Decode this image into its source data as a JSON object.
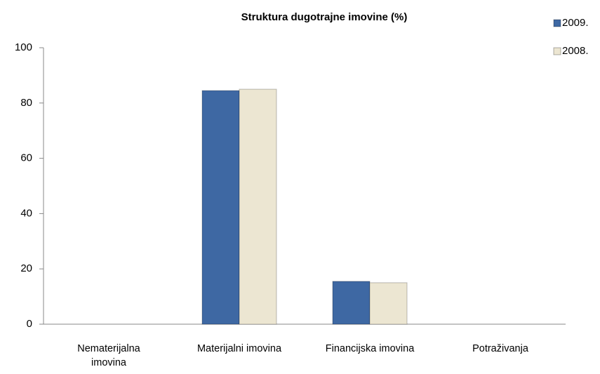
{
  "chart_data": {
    "type": "bar",
    "title": "Struktura dugotrajne imovine  (%)",
    "categories": [
      "Nematerijalna imovina",
      "Materijalni imovina",
      "Financijska imovina",
      "Potraživanja"
    ],
    "series": [
      {
        "name": "2009.",
        "color": "#3e68a3",
        "values": [
          0,
          84.5,
          15.5,
          0
        ]
      },
      {
        "name": "2008.",
        "color": "#ece6d2",
        "values": [
          0,
          85,
          15,
          0
        ]
      }
    ],
    "ylim": [
      0,
      100
    ],
    "yticks": [
      0,
      20,
      40,
      60,
      80,
      100
    ],
    "grid": false,
    "legend": "top-right"
  }
}
